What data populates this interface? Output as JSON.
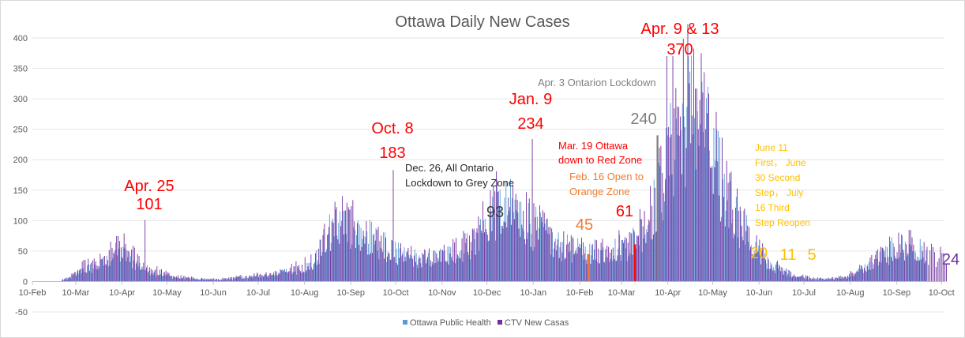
{
  "chart_data": {
    "type": "bar",
    "title": "Ottawa Daily New Cases",
    "xlabel": "",
    "ylabel": "",
    "ylim": [
      -50,
      400
    ],
    "yticks": [
      400,
      350,
      300,
      250,
      200,
      150,
      100,
      50,
      0,
      -50
    ],
    "grid": "horizontal",
    "legend_position": "bottom",
    "x_tick_labels": [
      "10-Feb",
      "10-Mar",
      "10-Apr",
      "10-May",
      "10-Jun",
      "10-Jul",
      "10-Aug",
      "10-Sep",
      "10-Oct",
      "10-Nov",
      "10-Dec",
      "10-Jan",
      "10-Feb",
      "10-Mar",
      "10-Apr",
      "10-May",
      "10-Jun",
      "10-Jul",
      "10-Aug",
      "10-Sep",
      "10-Oct"
    ],
    "series": [
      {
        "name": "Ottawa Public Health",
        "color": "#5b9bd5",
        "x_start": "2020-03-01",
        "x_end": "2021-09-30",
        "weekly_values": [
          2,
          8,
          20,
          22,
          28,
          45,
          42,
          30,
          20,
          15,
          10,
          6,
          5,
          4,
          3,
          3,
          4,
          6,
          8,
          10,
          12,
          15,
          18,
          22,
          28,
          60,
          90,
          100,
          88,
          78,
          65,
          55,
          45,
          40,
          38,
          35,
          40,
          45,
          50,
          62,
          80,
          110,
          120,
          118,
          108,
          90,
          75,
          62,
          55,
          50,
          48,
          46,
          50,
          54,
          60,
          75,
          100,
          140,
          200,
          250,
          280,
          265,
          210,
          160,
          120,
          90,
          60,
          40,
          25,
          16,
          10,
          6,
          4,
          4,
          5,
          8,
          15,
          25,
          35,
          48,
          55,
          55,
          50,
          40
        ]
      },
      {
        "name": "CTV New Casas",
        "color": "#7030a0",
        "x_start": "2020-03-01",
        "x_end": "2021-10-13",
        "weekly_values": [
          3,
          10,
          25,
          28,
          35,
          55,
          55,
          38,
          25,
          18,
          12,
          8,
          6,
          5,
          4,
          4,
          5,
          8,
          10,
          12,
          14,
          18,
          22,
          28,
          35,
          70,
          100,
          110,
          95,
          82,
          70,
          58,
          48,
          42,
          40,
          38,
          44,
          48,
          55,
          68,
          90,
          125,
          140,
          130,
          115,
          95,
          80,
          65,
          58,
          52,
          50,
          48,
          52,
          58,
          65,
          82,
          115,
          160,
          230,
          280,
          310,
          290,
          230,
          170,
          125,
          95,
          65,
          42,
          27,
          17,
          11,
          7,
          5,
          5,
          6,
          10,
          18,
          28,
          40,
          52,
          60,
          60,
          55,
          45,
          40,
          24
        ]
      }
    ],
    "peaks": [
      {
        "date": "2020-04-25",
        "value": 101,
        "color": "#7030a0"
      },
      {
        "date": "2020-10-08",
        "value": 183,
        "color": "#7030a0"
      },
      {
        "date": "2020-12-26",
        "value": 93,
        "color": "#7030a0"
      },
      {
        "date": "2021-01-09",
        "value": 234,
        "color": "#7030a0"
      },
      {
        "date": "2021-02-16",
        "value": 45,
        "color": "#ed7d31"
      },
      {
        "date": "2021-03-19",
        "value": 61,
        "color": "#ff0000"
      },
      {
        "date": "2021-04-03",
        "value": 240,
        "color": "#7f7f7f"
      },
      {
        "date": "2021-04-09",
        "value": 370,
        "color": "#7030a0"
      },
      {
        "date": "2021-04-13",
        "value": 370,
        "color": "#7030a0"
      }
    ],
    "annotations": [
      {
        "id": "apr25",
        "lines": [
          "Apr. 25",
          "101"
        ],
        "color": "#ff0000",
        "size": 20
      },
      {
        "id": "oct8",
        "lines": [
          "Oct. 8",
          "183"
        ],
        "color": "#ff0000",
        "size": 20
      },
      {
        "id": "dec26",
        "lines": [
          "Dec. 26, All Ontario",
          "Lockdown to Grey Zone"
        ],
        "color": "#262626",
        "size": 13
      },
      {
        "id": "n93",
        "lines": [
          "93"
        ],
        "color": "#404040",
        "size": 20
      },
      {
        "id": "jan9",
        "lines": [
          "Jan. 9",
          "234"
        ],
        "color": "#ff0000",
        "size": 20
      },
      {
        "id": "mar19",
        "lines": [
          "Mar. 19 Ottawa",
          "down to Red Zone"
        ],
        "color": "#ff0000",
        "size": 13
      },
      {
        "id": "feb16",
        "lines": [
          "Feb. 16 Open to",
          "Orange Zone"
        ],
        "color": "#ed7d31",
        "size": 13
      },
      {
        "id": "n45",
        "lines": [
          "45"
        ],
        "color": "#ed7d31",
        "size": 20
      },
      {
        "id": "n61",
        "lines": [
          "61"
        ],
        "color": "#ff0000",
        "size": 20
      },
      {
        "id": "n240",
        "lines": [
          "240"
        ],
        "color": "#7f7f7f",
        "size": 20
      },
      {
        "id": "apr3",
        "lines": [
          "Apr. 3 Ontarion Lockdown"
        ],
        "color": "#7f7f7f",
        "size": 13
      },
      {
        "id": "apr913",
        "lines": [
          "Apr. 9 & 13",
          "370"
        ],
        "color": "#ff0000",
        "size": 20
      },
      {
        "id": "june11",
        "lines": [
          "June 11",
          "First， June",
          "30 Second",
          "Step， July",
          "16 Third",
          "Step Reopen"
        ],
        "color": "#ffc000",
        "size": 12
      },
      {
        "id": "n20",
        "lines": [
          "20"
        ],
        "color": "#ffc000",
        "size": 20
      },
      {
        "id": "n11",
        "lines": [
          "11"
        ],
        "color": "#ffc000",
        "size": 20
      },
      {
        "id": "n5",
        "lines": [
          "5"
        ],
        "color": "#ffc000",
        "size": 20
      },
      {
        "id": "n24",
        "lines": [
          "24"
        ],
        "color": "#7030a0",
        "size": 20
      }
    ],
    "markers": [
      {
        "date": "2021-02-16",
        "value": 45,
        "color": "#ed7d31"
      },
      {
        "date": "2021-03-19",
        "value": 61,
        "color": "#ff0000"
      },
      {
        "date": "2021-04-03",
        "value": 240,
        "color": "#7f7f7f"
      }
    ]
  }
}
